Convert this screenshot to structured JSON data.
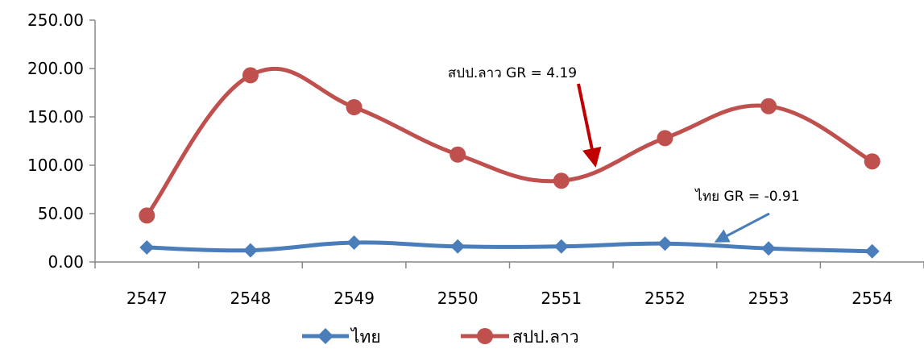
{
  "chart_data": {
    "type": "line",
    "categories": [
      "2547",
      "2548",
      "2549",
      "2550",
      "2551",
      "2552",
      "2553",
      "2554"
    ],
    "ylim": [
      0,
      250
    ],
    "yticks": [
      "0.00",
      "50.00",
      "100.00",
      "150.00",
      "200.00",
      "250.00"
    ],
    "ytick_values": [
      0,
      50,
      100,
      150,
      200,
      250
    ],
    "grid": false,
    "legend": "bottom",
    "series": [
      {
        "name": "ไทย",
        "color": "#4a7ebb",
        "marker": "diamond",
        "values": [
          15,
          12,
          20,
          16,
          16,
          19,
          14,
          11
        ]
      },
      {
        "name": "สปป.ลาว",
        "color": "#c0504d",
        "marker": "circle",
        "values": [
          48,
          193,
          160,
          111,
          84,
          128,
          161,
          104
        ]
      }
    ],
    "annotations": [
      {
        "text": "สปป.ลาว  GR = 4.19",
        "color": "#c00000"
      },
      {
        "text": "ไทย  GR = -0.91",
        "color": "#4a7ebb"
      }
    ]
  }
}
